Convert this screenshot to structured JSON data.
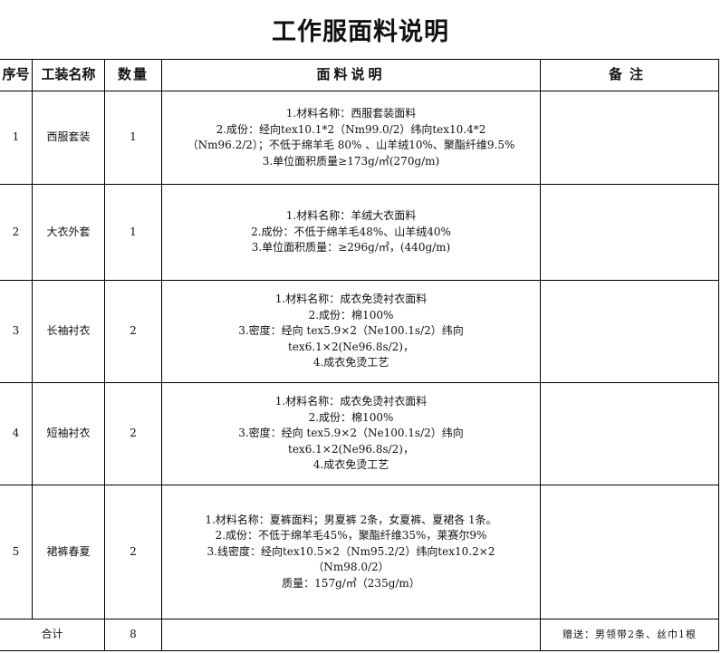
{
  "title": "工作服面料说明",
  "headers": [
    "序号",
    "工装名称",
    "数量",
    "面料说明",
    "备注"
  ],
  "rows": [
    {
      "no": "1",
      "name": "西服套装",
      "qty": "1",
      "desc": [
        "1.材料名称：西服套装面料",
        "2.成份：经向tex10.1*2（Nm99.0/2）纬向tex10.4*2",
        "（Nm96.2/2）；不低于绵羊毛 80% 、山羊绒10%、聚酯纤维9.5%",
        "3.单位面积质量≥173g/㎡(270g/m)"
      ],
      "note": ""
    },
    {
      "no": "2",
      "name": "大衣外套",
      "qty": "1",
      "desc": [
        "1.材料名称：羊绒大衣面料",
        "2.成份：不低于绵羊毛48%、山羊绒40%",
        "3.单位面积质量：≥296g/㎡，(440g/m)"
      ],
      "note": ""
    },
    {
      "no": "3",
      "name": "长袖衬衣",
      "qty": "2",
      "desc": [
        "1.材料名称：成衣免烫衬衣面料",
        "2.成份：棉100%",
        "3.密度：经向 tex5.9×2（Ne100.1s/2）纬向",
        "tex6.1×2(Ne96.8s/2)，",
        "4.成衣免烫工艺"
      ],
      "note": ""
    },
    {
      "no": "4",
      "name": "短袖衬衣",
      "qty": "2",
      "desc": [
        "1.材料名称：成衣免烫衬衣面料",
        "2.成份：棉100%",
        "3.密度：经向 tex5.9×2（Ne100.1s/2）纬向",
        "tex6.1×2(Ne96.8s/2)，",
        "4.成衣免烫工艺"
      ],
      "note": ""
    },
    {
      "no": "5",
      "name": "裙裤春夏",
      "qty": "2",
      "desc": [
        "1.材料名称：夏裤面料；男夏裤 2条，女夏裤、夏裙各 1条。",
        "2.成份：不低于绵羊毛45%，聚酯纤维35%，莱赛尔9%",
        "3.线密度：经向tex10.5×2（Nm95.2/2）纬向tex10.2×2",
        "（Nm98.0/2）",
        "质量：157g/㎡（235g/m）"
      ],
      "note": ""
    }
  ],
  "total": {
    "label": "合计",
    "qty": "8",
    "desc": "",
    "note": "赠送：男领带2条、丝巾1根"
  }
}
